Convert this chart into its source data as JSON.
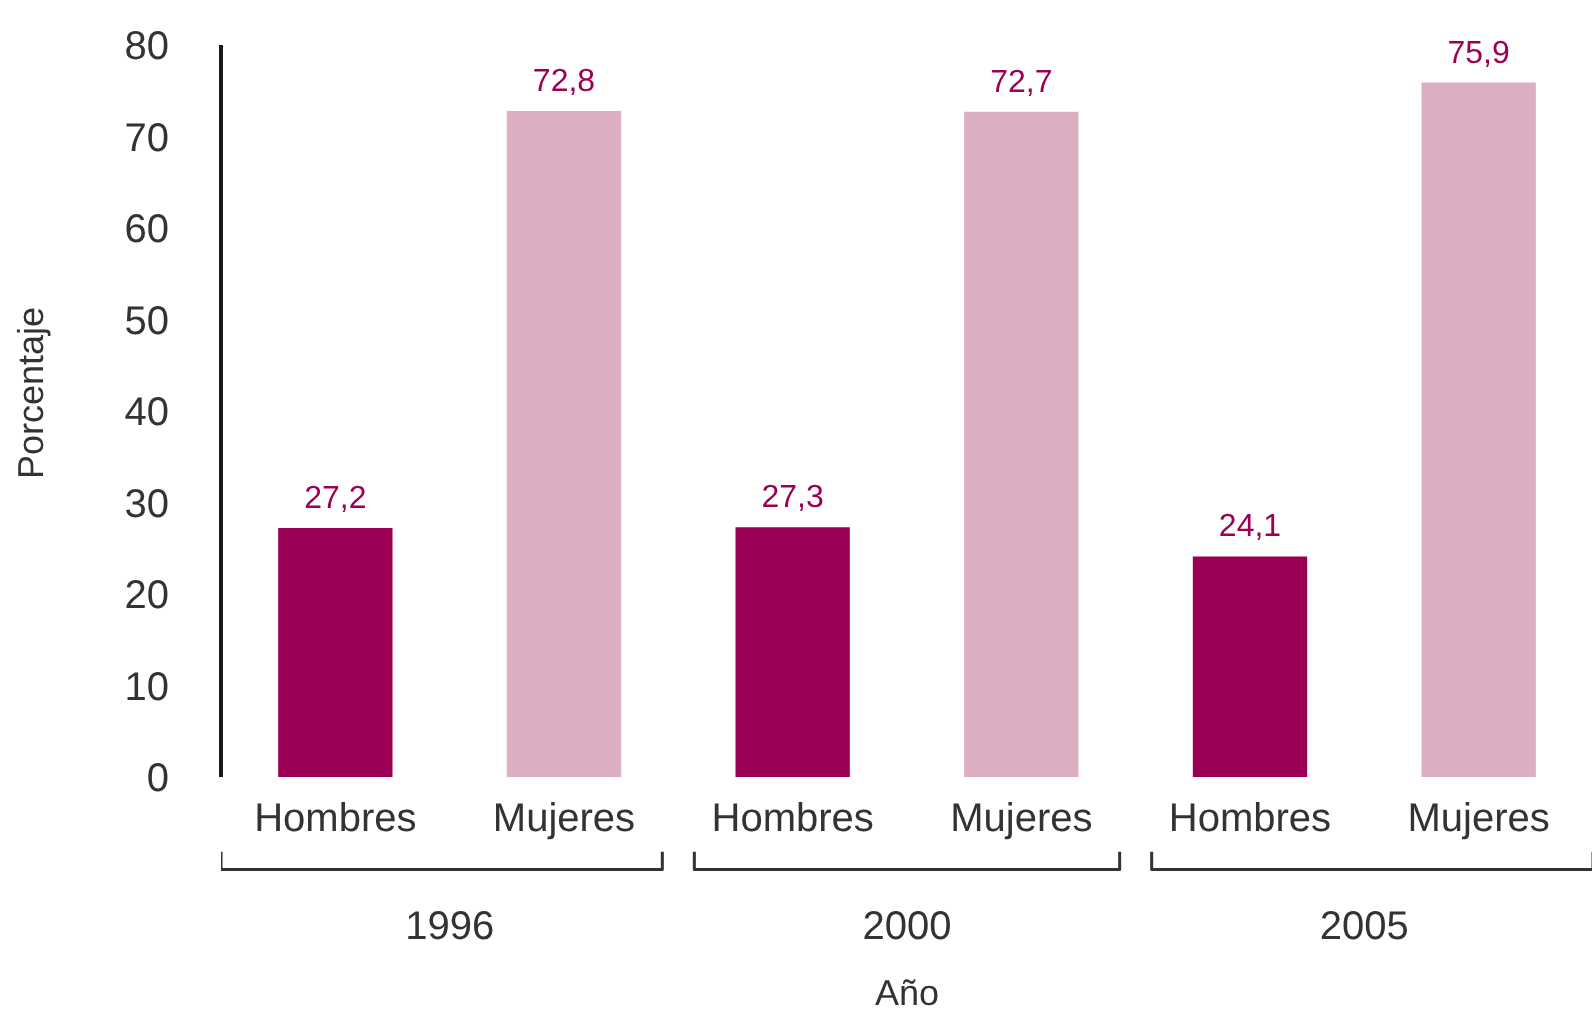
{
  "chart_data": {
    "type": "bar",
    "xlabel": "Año",
    "ylabel": "Porcentaje",
    "categories": [
      "1996",
      "2000",
      "2005"
    ],
    "series": [
      {
        "name": "Hombres",
        "color": "#9b0055",
        "values": [
          27.2,
          27.3,
          24.1
        ],
        "value_labels": [
          "27,2",
          "27,3",
          "24,1"
        ]
      },
      {
        "name": "Mujeres",
        "color": "#dbaec2",
        "values": [
          72.8,
          72.7,
          75.9
        ],
        "value_labels": [
          "72,8",
          "72,7",
          "75,9"
        ]
      }
    ],
    "ylim": [
      0,
      80
    ],
    "yticks": [
      0,
      10,
      20,
      30,
      40,
      50,
      60,
      70,
      80
    ]
  }
}
